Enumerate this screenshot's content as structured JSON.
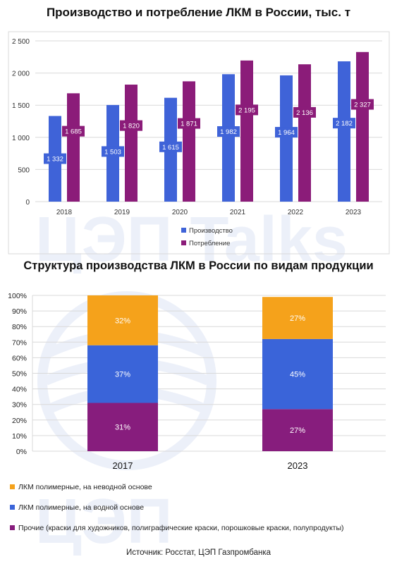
{
  "colors": {
    "production": "#3f63d8",
    "consumption": "#8b1c79",
    "orange": "#f5a21b",
    "blue": "#3a64d9",
    "purple": "#871d7d"
  },
  "chart_data": [
    {
      "type": "bar",
      "title": "Производство и потребление ЛКМ в России, тыс. т",
      "categories": [
        "2018",
        "2019",
        "2020",
        "2021",
        "2022",
        "2023"
      ],
      "yticks": [
        "0",
        "500",
        "1 000",
        "1 500",
        "2 000",
        "2 500"
      ],
      "ylim": [
        0,
        2500
      ],
      "legend_position": "bottom",
      "series": [
        {
          "name": "Производство",
          "values": [
            1332,
            1503,
            1615,
            1982,
            1964,
            2182
          ],
          "labels": [
            "1 332",
            "1 503",
            "1 615",
            "1 982",
            "1 964",
            "2 182"
          ]
        },
        {
          "name": "Потребление",
          "values": [
            1685,
            1820,
            1871,
            2195,
            2136,
            2327
          ],
          "labels": [
            "1 685",
            "1 820",
            "1 871",
            "2 195",
            "2 136",
            "2 327"
          ]
        }
      ]
    },
    {
      "type": "bar",
      "stacked": true,
      "percent": true,
      "title": "Структура производства ЛКМ в России по видам продукции",
      "categories": [
        "2017",
        "2023"
      ],
      "yticks": [
        "0%",
        "10%",
        "20%",
        "30%",
        "40%",
        "50%",
        "60%",
        "70%",
        "80%",
        "90%",
        "100%"
      ],
      "legend_position": "bottom",
      "series": [
        {
          "name": "Прочие (краски для художников, полиграфические краски, порошковые краски, полупродукты)",
          "values": [
            31,
            27
          ],
          "labels": [
            "31%",
            "27%"
          ]
        },
        {
          "name": "ЛКМ полимерные, на водной основе",
          "values": [
            37,
            45
          ],
          "labels": [
            "37%",
            "45%"
          ]
        },
        {
          "name": "ЛКМ полимерные, на неводной основе",
          "values": [
            32,
            27
          ],
          "labels": [
            "32%",
            "27%"
          ]
        }
      ]
    }
  ],
  "source": "Источник: Росстат, ЦЭП Газпромбанка"
}
